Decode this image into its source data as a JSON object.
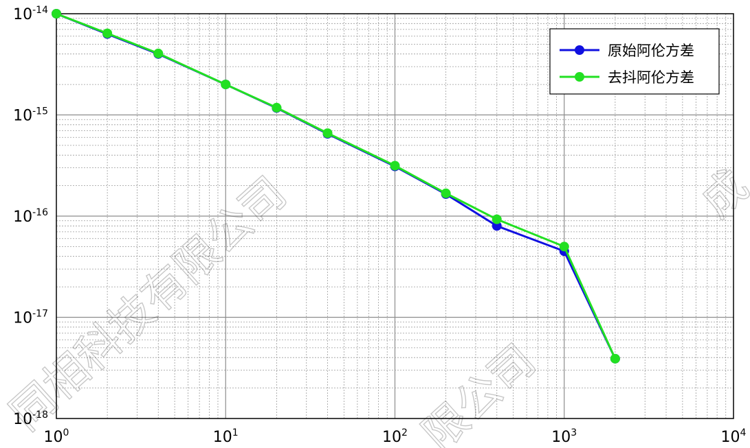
{
  "chart_data": {
    "type": "line",
    "title": "",
    "xlabel": "",
    "ylabel": "",
    "xscale": "log",
    "yscale": "log",
    "xlim": [
      1,
      10000
    ],
    "ylim": [
      1e-18,
      1e-14
    ],
    "grid": true,
    "legend_position": "top-right",
    "x_ticks": [
      {
        "base": "10",
        "exp": "0"
      },
      {
        "base": "10",
        "exp": "1"
      },
      {
        "base": "10",
        "exp": "2"
      },
      {
        "base": "10",
        "exp": "3"
      },
      {
        "base": "10",
        "exp": "4"
      }
    ],
    "y_ticks": [
      {
        "base": "10",
        "exp": "-14"
      },
      {
        "base": "10",
        "exp": "-15"
      },
      {
        "base": "10",
        "exp": "-16"
      },
      {
        "base": "10",
        "exp": "-17"
      },
      {
        "base": "10",
        "exp": "-18"
      }
    ],
    "x": [
      1,
      2,
      4,
      10,
      20,
      40,
      100,
      200,
      400,
      1000,
      2000
    ],
    "series": [
      {
        "name": "原始阿伦方差",
        "color": "#1010e0",
        "values": [
          1e-14,
          6.3e-15,
          4e-15,
          2e-15,
          1.17e-15,
          6.5e-16,
          3.1e-16,
          1.65e-16,
          8e-17,
          4.5e-17,
          3.9e-18
        ]
      },
      {
        "name": "去抖阿伦方差",
        "color": "#22e022",
        "values": [
          1e-14,
          6.4e-15,
          4.05e-15,
          2e-15,
          1.18e-15,
          6.6e-16,
          3.15e-16,
          1.68e-16,
          9.3e-17,
          5e-17,
          3.9e-18
        ]
      }
    ]
  },
  "watermark": {
    "text_a": "同相科技有限公司",
    "text_b": "限公司",
    "text_c": "成"
  }
}
